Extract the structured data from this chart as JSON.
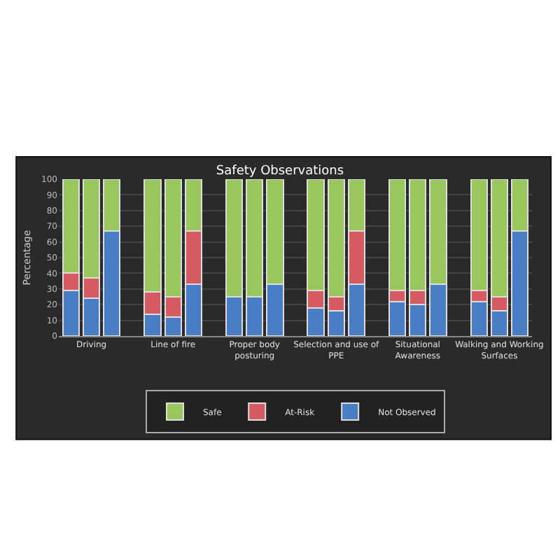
{
  "chart_data": {
    "type": "bar",
    "stacked": true,
    "title": "Safety Observations",
    "ylabel": "Percentage",
    "categories": [
      null,
      "Driving",
      null,
      null,
      null,
      "Line of fire",
      null,
      null,
      null,
      "Proper body posturing",
      null,
      null,
      null,
      "Selection and use of PPE",
      null,
      null,
      null,
      "Situational Awareness",
      null,
      null,
      null,
      "Walking and Working Surfaces",
      null
    ],
    "series": [
      {
        "name": "Not Observed",
        "color": "#4a7ec4",
        "values": [
          29,
          24,
          67,
          null,
          14,
          12,
          33,
          null,
          25,
          25,
          33,
          null,
          18,
          16,
          33,
          null,
          22,
          20,
          33,
          null,
          22,
          16,
          67
        ]
      },
      {
        "name": "At-Risk",
        "color": "#d65a62",
        "values": [
          11,
          13,
          null,
          null,
          14,
          13,
          34,
          null,
          null,
          null,
          null,
          null,
          11,
          9,
          34,
          null,
          7,
          9,
          null,
          null,
          7,
          9,
          null
        ]
      },
      {
        "name": "Safe",
        "color": "#9ac65e",
        "values": [
          60,
          63,
          33,
          null,
          72,
          75,
          33,
          null,
          75,
          75,
          67,
          null,
          71,
          75,
          33,
          null,
          71,
          71,
          67,
          null,
          71,
          75,
          33
        ]
      }
    ],
    "ylim": [
      0,
      100
    ],
    "yticks": [
      0,
      10,
      20,
      30,
      40,
      50,
      60,
      70,
      80,
      90,
      100
    ],
    "grid": "y",
    "legend": "bottom"
  }
}
